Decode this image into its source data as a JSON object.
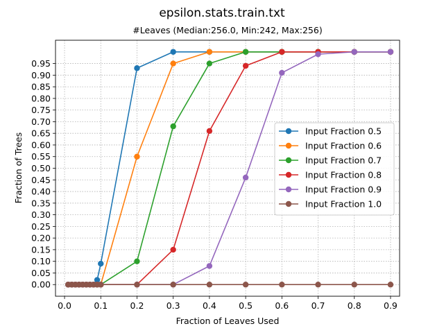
{
  "chart_data": {
    "type": "line",
    "title": "epsilon.stats.train.txt",
    "subtitle": "#Leaves (Median:256.0, Min:242, Max:256)",
    "xlabel": "Fraction of Leaves Used",
    "ylabel": "Fraction of Trees",
    "xlim": [
      -0.025,
      0.925
    ],
    "ylim": [
      -0.05,
      1.05
    ],
    "xticks": [
      0.0,
      0.1,
      0.2,
      0.3,
      0.4,
      0.5,
      0.6,
      0.7,
      0.8,
      0.9
    ],
    "xtick_labels": [
      "0.0",
      "0.1",
      "0.2",
      "0.3",
      "0.4",
      "0.5",
      "0.6",
      "0.7",
      "0.8",
      "0.9"
    ],
    "yticks": [
      0.0,
      0.05,
      0.1,
      0.15,
      0.2,
      0.25,
      0.3,
      0.35,
      0.4,
      0.45,
      0.5,
      0.55,
      0.6,
      0.65,
      0.7,
      0.75,
      0.8,
      0.85,
      0.9,
      0.95
    ],
    "ytick_labels": [
      "0.00",
      "0.05",
      "0.10",
      "0.15",
      "0.20",
      "0.25",
      "0.30",
      "0.35",
      "0.40",
      "0.45",
      "0.50",
      "0.55",
      "0.60",
      "0.65",
      "0.70",
      "0.75",
      "0.80",
      "0.85",
      "0.90",
      "0.95"
    ],
    "grid": true,
    "legend_position": "center-right",
    "x": [
      0.01,
      0.02,
      0.03,
      0.04,
      0.05,
      0.06,
      0.07,
      0.08,
      0.09,
      0.1,
      0.2,
      0.3,
      0.4,
      0.5,
      0.6,
      0.7,
      0.8,
      0.9
    ],
    "series": [
      {
        "name": "Input Fraction 0.5",
        "color": "#1f77b4",
        "values": [
          0,
          0,
          0,
          0,
          0,
          0,
          0,
          0,
          0.02,
          0.09,
          0.93,
          1.0,
          1.0,
          1.0,
          1.0,
          1.0,
          1.0,
          1.0
        ]
      },
      {
        "name": "Input Fraction 0.6",
        "color": "#ff7f0e",
        "values": [
          0,
          0,
          0,
          0,
          0,
          0,
          0,
          0,
          0,
          0,
          0.55,
          0.95,
          1.0,
          1.0,
          1.0,
          1.0,
          1.0,
          1.0
        ]
      },
      {
        "name": "Input Fraction 0.7",
        "color": "#2ca02c",
        "values": [
          0,
          0,
          0,
          0,
          0,
          0,
          0,
          0,
          0,
          0,
          0.1,
          0.68,
          0.95,
          1.0,
          1.0,
          1.0,
          1.0,
          1.0
        ]
      },
      {
        "name": "Input Fraction 0.8",
        "color": "#d62728",
        "values": [
          0,
          0,
          0,
          0,
          0,
          0,
          0,
          0,
          0,
          0,
          0,
          0.15,
          0.66,
          0.94,
          1.0,
          1.0,
          1.0,
          1.0
        ]
      },
      {
        "name": "Input Fraction 0.9",
        "color": "#9467bd",
        "values": [
          0,
          0,
          0,
          0,
          0,
          0,
          0,
          0,
          0,
          0,
          0,
          0,
          0.08,
          0.46,
          0.91,
          0.99,
          1.0,
          1.0
        ]
      },
      {
        "name": "Input Fraction 1.0",
        "color": "#8c564b",
        "values": [
          0,
          0,
          0,
          0,
          0,
          0,
          0,
          0,
          0,
          0,
          0,
          0,
          0,
          0,
          0,
          0,
          0,
          0
        ]
      }
    ]
  }
}
